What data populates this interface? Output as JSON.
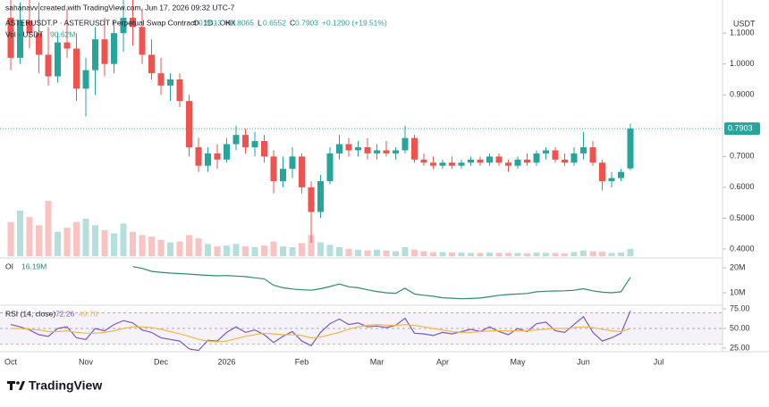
{
  "header": {
    "credit": "sahanavv created with TradingView.com, Jun 17, 2026 09:32 UTC-7",
    "symbol": "ASTERUSDT.P · ASTERUSDT Perpetual Swap Contract · 1D · OKX",
    "ohlc_letters": [
      "O",
      "H",
      "L",
      "C"
    ],
    "change": "+0.1290 (+19.51%)",
    "currency": "USDT"
  },
  "logo": "TradingView",
  "chart_data": [
    {
      "type": "candlestick",
      "categories": [
        "Oct",
        null,
        null,
        null,
        null,
        null,
        null,
        null,
        "Nov",
        null,
        null,
        null,
        null,
        null,
        null,
        null,
        "Dec",
        null,
        null,
        null,
        null,
        null,
        null,
        "2026",
        null,
        null,
        null,
        null,
        null,
        null,
        null,
        "Feb",
        null,
        null,
        null,
        null,
        null,
        null,
        null,
        "Mar",
        null,
        null,
        null,
        null,
        null,
        null,
        "Apr",
        null,
        null,
        null,
        null,
        null,
        null,
        null,
        "May",
        null,
        null,
        null,
        null,
        null,
        null,
        "Jun",
        null,
        null,
        null,
        null,
        null,
        null,
        null,
        "Jul"
      ],
      "open": [
        1.15,
        1.02,
        1.14,
        1.1,
        1.03,
        0.96,
        1.07,
        1.05,
        0.92,
        0.98,
        1.08,
        1.0,
        1.1,
        1.15,
        1.12,
        1.03,
        0.97,
        0.93,
        0.95,
        0.88,
        0.73,
        0.67,
        0.71,
        0.69,
        0.74,
        0.77,
        0.73,
        0.75,
        0.7,
        0.62,
        0.66,
        0.7,
        0.6,
        0.52,
        0.62,
        0.71,
        0.74,
        0.72,
        0.73,
        0.71,
        0.72,
        0.71,
        0.72,
        0.76,
        0.69,
        0.68,
        0.67,
        0.68,
        0.67,
        0.68,
        0.69,
        0.68,
        0.7,
        0.68,
        0.67,
        0.69,
        0.68,
        0.71,
        0.72,
        0.69,
        0.68,
        0.71,
        0.73,
        0.68,
        0.62,
        0.63,
        0.6613,
        null,
        null,
        null
      ],
      "high": [
        1.21,
        1.2,
        1.21,
        1.2,
        1.12,
        1.1,
        1.18,
        1.1,
        1.02,
        1.12,
        1.15,
        1.14,
        1.21,
        1.21,
        1.18,
        1.08,
        1.02,
        0.97,
        0.97,
        0.9,
        0.76,
        0.73,
        0.74,
        0.76,
        0.8,
        0.79,
        0.78,
        0.77,
        0.72,
        0.7,
        0.73,
        0.71,
        0.62,
        0.64,
        0.73,
        0.77,
        0.76,
        0.75,
        0.76,
        0.74,
        0.75,
        0.73,
        0.8,
        0.77,
        0.71,
        0.7,
        0.69,
        0.7,
        0.69,
        0.7,
        0.7,
        0.71,
        0.71,
        0.69,
        0.7,
        0.71,
        0.72,
        0.73,
        0.73,
        0.71,
        0.73,
        0.78,
        0.75,
        0.69,
        0.65,
        0.66,
        0.8065,
        null,
        null,
        null
      ],
      "low": [
        0.98,
        1.0,
        1.05,
        0.97,
        0.93,
        0.94,
        1.02,
        0.88,
        0.83,
        0.9,
        0.96,
        0.97,
        1.04,
        1.06,
        1.0,
        0.95,
        0.9,
        0.88,
        0.86,
        0.7,
        0.65,
        0.65,
        0.66,
        0.68,
        0.72,
        0.71,
        0.7,
        0.68,
        0.58,
        0.6,
        0.63,
        0.58,
        0.42,
        0.5,
        0.61,
        0.69,
        0.7,
        0.7,
        0.69,
        0.69,
        0.7,
        0.69,
        0.71,
        0.68,
        0.67,
        0.66,
        0.66,
        0.66,
        0.66,
        0.67,
        0.67,
        0.67,
        0.67,
        0.65,
        0.66,
        0.67,
        0.67,
        0.69,
        0.68,
        0.67,
        0.67,
        0.69,
        0.67,
        0.59,
        0.6,
        0.62,
        0.6552,
        null,
        null,
        null
      ],
      "close": [
        1.02,
        1.14,
        1.1,
        1.03,
        0.96,
        1.07,
        1.05,
        0.92,
        0.98,
        1.08,
        1.0,
        1.1,
        1.15,
        1.12,
        1.03,
        0.97,
        0.93,
        0.95,
        0.88,
        0.73,
        0.67,
        0.71,
        0.69,
        0.74,
        0.77,
        0.73,
        0.75,
        0.7,
        0.62,
        0.66,
        0.7,
        0.6,
        0.52,
        0.62,
        0.71,
        0.74,
        0.72,
        0.73,
        0.71,
        0.72,
        0.71,
        0.72,
        0.76,
        0.69,
        0.68,
        0.67,
        0.68,
        0.67,
        0.68,
        0.69,
        0.68,
        0.7,
        0.68,
        0.67,
        0.69,
        0.68,
        0.71,
        0.72,
        0.69,
        0.68,
        0.71,
        0.73,
        0.68,
        0.62,
        0.63,
        0.65,
        0.7903,
        null,
        null,
        null
      ],
      "up_color": "#26a69a",
      "down_color": "#ef5350",
      "ylim": [
        0.3767,
        1.2076
      ],
      "yticks": [
        {
          "value": 0.4,
          "label": "0.4000"
        },
        {
          "value": 0.5,
          "label": "0.5000"
        },
        {
          "value": 0.6,
          "label": "0.6000"
        },
        {
          "value": 0.7,
          "label": "0.7000"
        },
        {
          "value": 0.9,
          "label": "0.9000"
        },
        {
          "value": 1.0,
          "label": "1.0000"
        },
        {
          "value": 1.1,
          "label": "1.1000"
        }
      ],
      "volume": {
        "name": "Vol · USDT",
        "value_label": "90.62M",
        "values": [
          420,
          560,
          480,
          380,
          680,
          300,
          350,
          420,
          460,
          380,
          320,
          280,
          400,
          300,
          260,
          240,
          200,
          170,
          180,
          260,
          220,
          150,
          120,
          130,
          150,
          120,
          110,
          130,
          180,
          120,
          110,
          160,
          260,
          170,
          140,
          110,
          90,
          80,
          70,
          80,
          70,
          60,
          110,
          80,
          60,
          50,
          50,
          45,
          45,
          40,
          40,
          45,
          40,
          40,
          40,
          35,
          45,
          40,
          40,
          35,
          50,
          70,
          60,
          55,
          40,
          45,
          90.62,
          null,
          null,
          null
        ]
      }
    },
    {
      "type": "line",
      "name": "OI",
      "value_label": "16.19M",
      "color": "#2e8b6e",
      "values": [
        null,
        null,
        null,
        null,
        null,
        null,
        null,
        null,
        null,
        null,
        null,
        null,
        null,
        20.5,
        19.8,
        18.6,
        18.2,
        17.9,
        17.7,
        17.5,
        17.2,
        17.0,
        16.8,
        16.9,
        16.7,
        16.5,
        16.0,
        15.6,
        13.0,
        12.0,
        11.5,
        11.2,
        11.0,
        11.6,
        12.5,
        13.5,
        12.4,
        12.0,
        11.2,
        10.5,
        10.0,
        9.8,
        11.8,
        9.5,
        9.0,
        8.6,
        8.0,
        7.8,
        7.6,
        7.7,
        7.9,
        8.4,
        9.0,
        9.3,
        9.5,
        9.7,
        10.4,
        10.6,
        10.7,
        10.8,
        11.0,
        11.6,
        10.8,
        10.2,
        10.0,
        10.4,
        16.19,
        null,
        null,
        null
      ],
      "ylim": [
        5.7,
        22.9
      ],
      "yticks": [
        {
          "value": 10,
          "label": "10M"
        },
        {
          "value": 20,
          "label": "20M"
        }
      ]
    },
    {
      "type": "line",
      "name": "RSI (14, close)",
      "series": [
        {
          "color": "#7e57c2",
          "values": [
            55,
            52,
            48,
            42,
            40,
            50,
            52,
            38,
            36,
            50,
            47,
            55,
            60,
            57,
            48,
            45,
            38,
            36,
            34,
            24,
            22,
            35,
            34,
            45,
            52,
            45,
            48,
            42,
            32,
            40,
            46,
            34,
            28,
            45,
            56,
            62,
            55,
            57,
            52,
            53,
            51,
            54,
            63,
            44,
            43,
            41,
            45,
            43,
            46,
            49,
            46,
            52,
            46,
            42,
            50,
            46,
            56,
            58,
            47,
            45,
            55,
            65,
            45,
            34,
            38,
            44,
            72.26,
            null,
            null,
            null
          ]
        },
        {
          "color": "#f2b84b",
          "values": [
            50,
            50,
            49,
            48,
            46,
            46,
            47,
            45,
            44,
            44,
            45,
            47,
            50,
            52,
            52,
            51,
            49,
            46,
            43,
            40,
            36,
            34,
            33,
            34,
            37,
            40,
            42,
            44,
            43,
            42,
            42,
            41,
            38,
            39,
            42,
            45,
            49,
            52,
            54,
            55,
            54,
            54,
            55,
            54,
            52,
            50,
            48,
            46,
            45,
            45,
            46,
            47,
            47,
            47,
            47,
            47,
            48,
            49,
            50,
            50,
            51,
            52,
            51,
            49,
            47,
            46,
            49.76,
            null,
            null,
            null
          ]
        }
      ],
      "levels": [
        70,
        50,
        30
      ],
      "ylim": [
        22.7,
        76.1
      ],
      "yticks": [
        {
          "value": 25,
          "label": "25.00"
        },
        {
          "value": 50,
          "label": "50.00"
        },
        {
          "value": 75,
          "label": "75.00"
        }
      ]
    }
  ]
}
